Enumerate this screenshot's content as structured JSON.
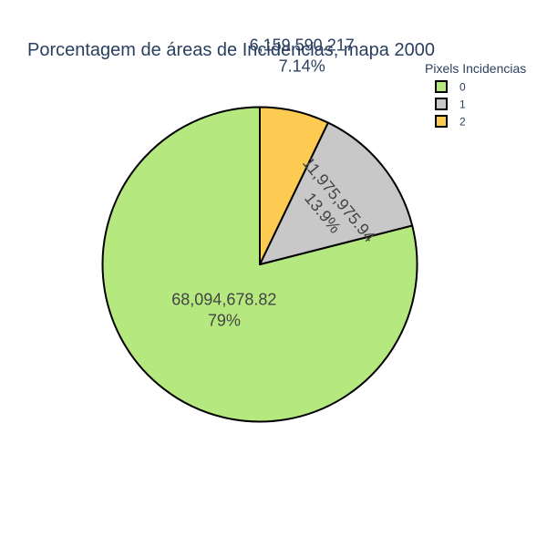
{
  "chart_data": {
    "type": "pie",
    "title": "Porcentagem de áreas de Incidencias, mapa 2000",
    "legend": {
      "title": "Pixels Incidencias",
      "placement": "top-right"
    },
    "slices": [
      {
        "category": "0",
        "value": 68094678.82,
        "value_label": "68,094,678.82",
        "percent_label": "79%",
        "color": "#b6e880"
      },
      {
        "category": "1",
        "value": 11975975.94,
        "value_label": "11,975,975.94",
        "percent_label": "13.9%",
        "color": "#c8c8c8"
      },
      {
        "category": "2",
        "value": 6159590.217,
        "value_label": "6,159,590.217",
        "percent_label": "7.14%",
        "color": "#fecb52"
      }
    ],
    "direction": "counterclockwise",
    "start_angle": "top"
  }
}
